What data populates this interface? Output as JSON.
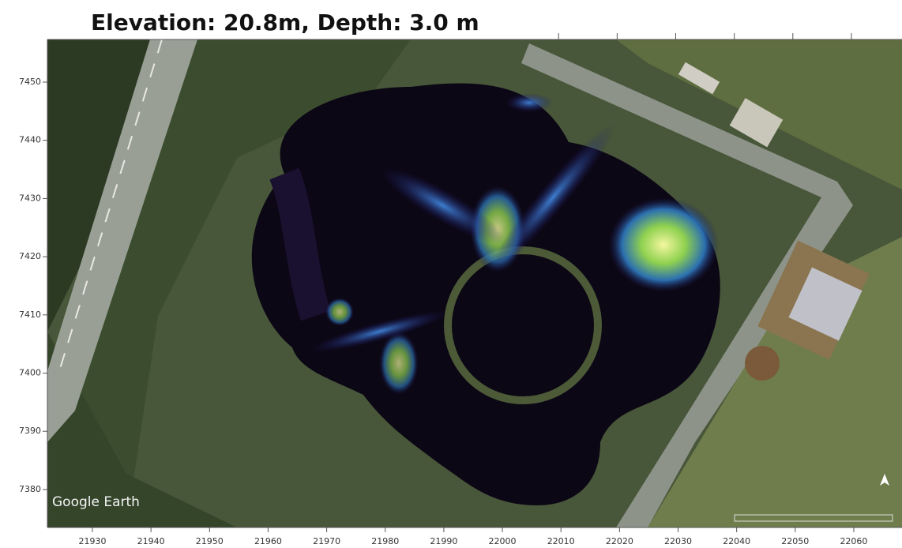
{
  "title": "Elevation: 20.8m, Depth: 3.0 m",
  "watermark": "Google Earth",
  "x_ticks": [
    21930,
    21940,
    21950,
    21960,
    21970,
    21980,
    21990,
    22000,
    22010,
    22020,
    22030,
    22040,
    22050,
    22060
  ],
  "y_ticks": [
    7450,
    7440,
    7430,
    7420,
    7410,
    7400,
    7390,
    7380
  ]
}
